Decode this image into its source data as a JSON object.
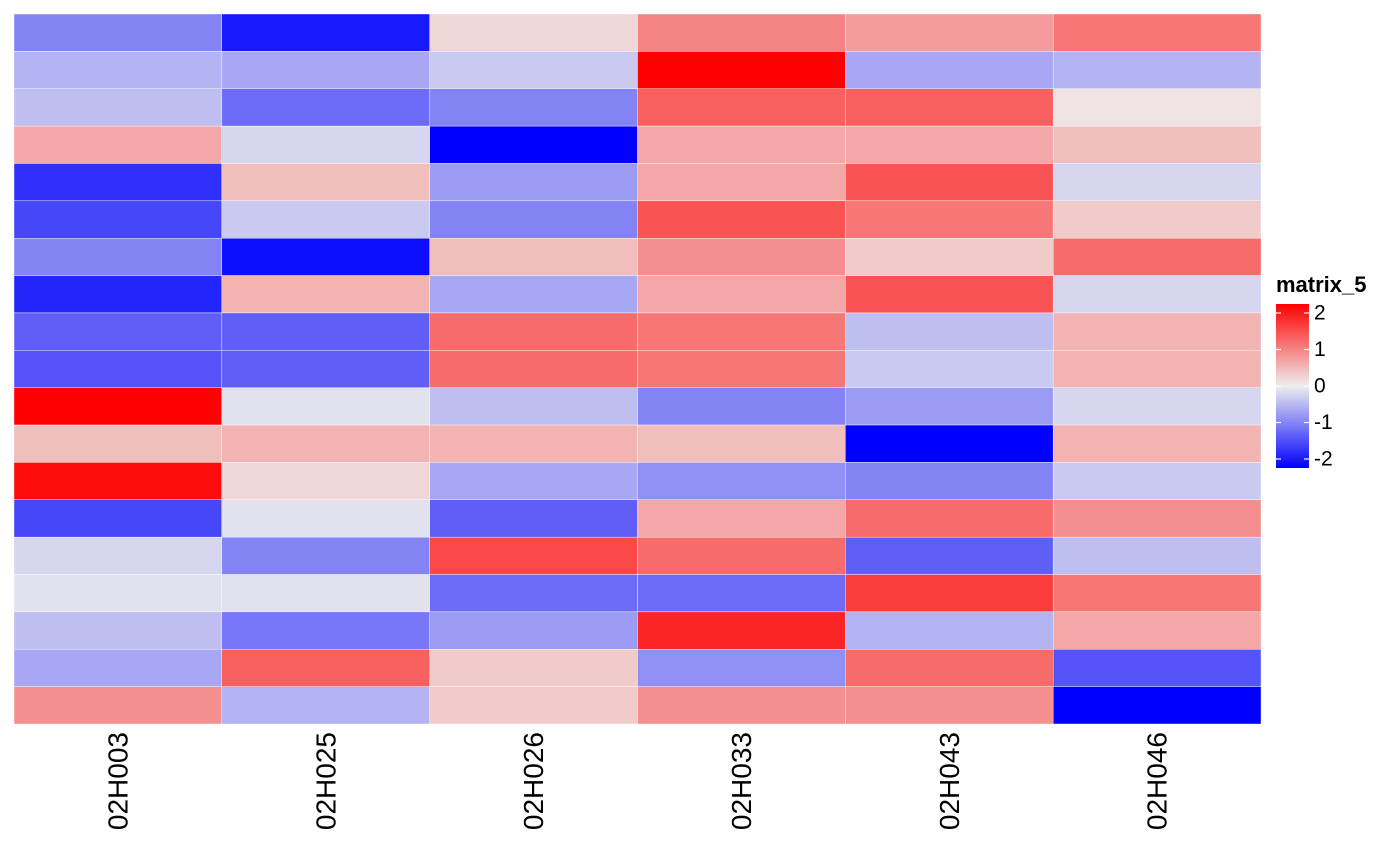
{
  "chart_data": {
    "type": "heatmap",
    "columns": [
      "02H003",
      "02H025",
      "02H026",
      "02H033",
      "02H043",
      "02H046"
    ],
    "rows": 19,
    "values": [
      [
        -0.9,
        -1.8,
        0.2,
        0.9,
        0.7,
        1.0
      ],
      [
        -0.5,
        -0.6,
        -0.3,
        2.2,
        -0.6,
        -0.5
      ],
      [
        -0.4,
        -1.1,
        -0.9,
        1.2,
        1.2,
        0.1
      ],
      [
        0.6,
        -0.2,
        -2.5,
        0.6,
        0.6,
        0.4
      ],
      [
        -1.6,
        0.4,
        -0.7,
        0.6,
        1.3,
        -0.2
      ],
      [
        -1.4,
        -0.3,
        -0.9,
        1.3,
        1.0,
        0.3
      ],
      [
        -0.9,
        -1.9,
        0.4,
        0.8,
        0.3,
        1.1
      ],
      [
        -1.7,
        0.5,
        -0.6,
        0.6,
        1.3,
        -0.2
      ],
      [
        -1.2,
        -1.2,
        1.1,
        1.0,
        -0.4,
        0.5
      ],
      [
        -1.3,
        -1.2,
        1.1,
        1.0,
        -0.3,
        0.5
      ],
      [
        2.0,
        -0.1,
        -0.4,
        -0.9,
        -0.7,
        -0.2
      ],
      [
        0.4,
        0.5,
        0.5,
        0.4,
        -2.5,
        0.5
      ],
      [
        1.9,
        0.2,
        -0.6,
        -0.8,
        -0.9,
        -0.3
      ],
      [
        -1.4,
        -0.1,
        -1.2,
        0.6,
        1.1,
        0.8
      ],
      [
        -0.2,
        -0.9,
        1.4,
        1.1,
        -1.2,
        -0.4
      ],
      [
        -0.1,
        -0.1,
        -1.1,
        -1.1,
        1.5,
        1.0
      ],
      [
        -0.4,
        -1.0,
        -0.7,
        1.7,
        -0.5,
        0.6
      ],
      [
        -0.6,
        1.2,
        0.3,
        -0.8,
        1.1,
        -1.3
      ],
      [
        0.8,
        -0.5,
        0.3,
        0.8,
        0.8,
        -2.1
      ]
    ],
    "legend": {
      "title": "matrix_5",
      "ticks": [
        2,
        1,
        0,
        -1,
        -2
      ],
      "tick_labels": [
        "2",
        "1",
        "0",
        "-1",
        "-2"
      ],
      "color_stops": [
        {
          "value": -2,
          "color": "#0000FF"
        },
        {
          "value": 0,
          "color": "#EEEEEE"
        },
        {
          "value": 2,
          "color": "#FF0000"
        }
      ]
    }
  }
}
